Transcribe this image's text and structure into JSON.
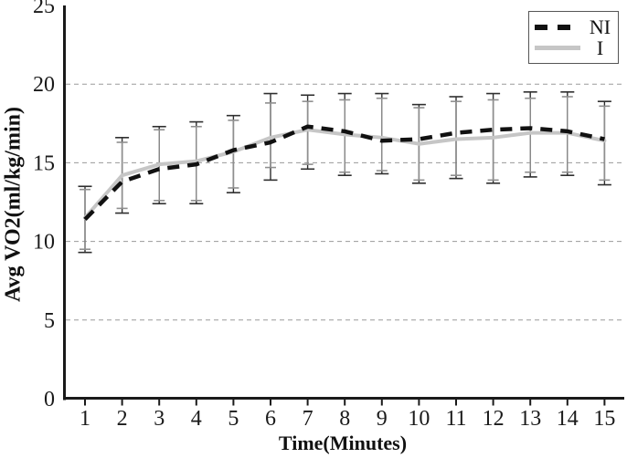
{
  "chart_data": {
    "type": "line",
    "title": "",
    "xlabel": "Time(Minutes)",
    "ylabel": "Avg VO2(ml/kg/min)",
    "x": [
      1,
      2,
      3,
      4,
      5,
      6,
      7,
      8,
      9,
      10,
      11,
      12,
      13,
      14,
      15
    ],
    "xticks": [
      "1",
      "2",
      "3",
      "4",
      "5",
      "6",
      "7",
      "8",
      "9",
      "10",
      "11",
      "12",
      "13",
      "14",
      "15"
    ],
    "yticks": [
      0,
      5,
      10,
      15,
      20,
      25
    ],
    "ylim": [
      0,
      25
    ],
    "grid": {
      "horizontal_dashed_at": [
        5,
        10,
        15,
        20
      ]
    },
    "legend_position": "top-right",
    "error_bars": true,
    "series": [
      {
        "name": "NI",
        "line_style": "dashed",
        "color": "#111111",
        "error_color": "#2e2e2e",
        "values": [
          11.4,
          13.8,
          14.6,
          14.9,
          15.8,
          16.3,
          17.3,
          17.0,
          16.4,
          16.5,
          16.9,
          17.1,
          17.2,
          17.0,
          16.5
        ],
        "error_upper": [
          13.5,
          16.6,
          17.3,
          17.6,
          18.0,
          19.4,
          19.3,
          19.4,
          19.4,
          18.7,
          19.2,
          19.4,
          19.5,
          19.5,
          18.9
        ],
        "error_lower": [
          9.3,
          11.8,
          12.4,
          12.4,
          13.1,
          13.9,
          14.6,
          14.2,
          14.3,
          13.7,
          14.0,
          13.7,
          14.1,
          14.2,
          13.6
        ]
      },
      {
        "name": "I",
        "line_style": "solid",
        "color": "#c6c6c6",
        "error_color": "#8f8f8f",
        "values": [
          11.5,
          14.2,
          14.9,
          15.1,
          15.7,
          16.6,
          17.1,
          16.8,
          16.6,
          16.2,
          16.5,
          16.6,
          16.9,
          16.9,
          16.4
        ],
        "error_upper": [
          13.3,
          16.3,
          17.1,
          17.3,
          17.7,
          18.8,
          18.9,
          19.0,
          19.1,
          18.5,
          18.9,
          19.0,
          19.1,
          19.2,
          18.6
        ],
        "error_lower": [
          9.5,
          12.1,
          12.6,
          12.6,
          13.4,
          14.7,
          14.9,
          14.4,
          14.5,
          13.9,
          14.2,
          13.9,
          14.4,
          14.4,
          13.9
        ]
      }
    ],
    "axis_color": "#1a1a1a",
    "gridline_color": "#9a9a9a"
  }
}
